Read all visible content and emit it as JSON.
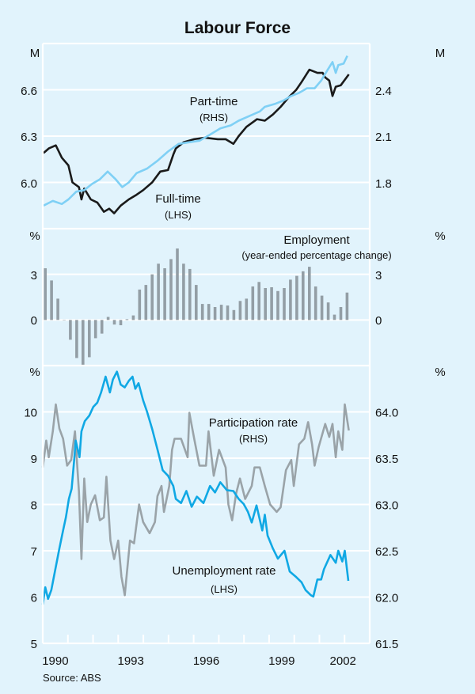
{
  "chart_data": [
    {
      "type": "line",
      "panel": "top",
      "ylabel_left": "M",
      "ylabel_right": "M",
      "ylim_left": [
        5.7,
        6.9
      ],
      "ylim_right": [
        1.5,
        2.7
      ],
      "yticks_left": [
        "6.0",
        "6.3",
        "6.6"
      ],
      "yticks_right": [
        "1.8",
        "2.1",
        "2.4"
      ],
      "grid": true,
      "series": [
        {
          "name": "Full-time",
          "axis": "left",
          "axis_label": "(LHS)",
          "color": "#1a1a1a",
          "points": [
            [
              1990.03,
              6.19
            ],
            [
              1990.24,
              6.22
            ],
            [
              1990.52,
              6.24
            ],
            [
              1990.76,
              6.16
            ],
            [
              1991.02,
              6.11
            ],
            [
              1991.18,
              6.0
            ],
            [
              1991.44,
              5.97
            ],
            [
              1991.54,
              5.89
            ],
            [
              1991.65,
              5.96
            ],
            [
              1991.91,
              5.89
            ],
            [
              1992.17,
              5.87
            ],
            [
              1992.43,
              5.81
            ],
            [
              1992.64,
              5.83
            ],
            [
              1992.84,
              5.8
            ],
            [
              1993.1,
              5.85
            ],
            [
              1993.42,
              5.89
            ],
            [
              1993.73,
              5.92
            ],
            [
              1993.99,
              5.95
            ],
            [
              1994.35,
              6.0
            ],
            [
              1994.67,
              6.07
            ],
            [
              1994.98,
              6.08
            ],
            [
              1995.19,
              6.18
            ],
            [
              1995.29,
              6.22
            ],
            [
              1995.6,
              6.26
            ],
            [
              1996.02,
              6.28
            ],
            [
              1996.44,
              6.29
            ],
            [
              1996.96,
              6.28
            ],
            [
              1997.27,
              6.28
            ],
            [
              1997.58,
              6.25
            ],
            [
              1997.79,
              6.3
            ],
            [
              1998.1,
              6.36
            ],
            [
              1998.52,
              6.41
            ],
            [
              1998.83,
              6.4
            ],
            [
              1999.15,
              6.44
            ],
            [
              1999.46,
              6.49
            ],
            [
              1999.77,
              6.55
            ],
            [
              2000.08,
              6.6
            ],
            [
              2000.29,
              6.65
            ],
            [
              2000.6,
              6.73
            ],
            [
              2000.92,
              6.71
            ],
            [
              2001.13,
              6.71
            ],
            [
              2001.23,
              6.68
            ],
            [
              2001.39,
              6.66
            ],
            [
              2001.52,
              6.56
            ],
            [
              2001.65,
              6.62
            ],
            [
              2001.85,
              6.63
            ],
            [
              2002.17,
              6.7
            ]
          ]
        },
        {
          "name": "Part-time",
          "axis": "right",
          "axis_label": "(RHS)",
          "color": "#7fd0f5",
          "points": [
            [
              1990.03,
              1.65
            ],
            [
              1990.4,
              1.68
            ],
            [
              1990.76,
              1.66
            ],
            [
              1991.02,
              1.69
            ],
            [
              1991.33,
              1.74
            ],
            [
              1991.65,
              1.75
            ],
            [
              1991.96,
              1.79
            ],
            [
              1992.27,
              1.82
            ],
            [
              1992.58,
              1.87
            ],
            [
              1992.9,
              1.82
            ],
            [
              1993.16,
              1.77
            ],
            [
              1993.42,
              1.8
            ],
            [
              1993.73,
              1.86
            ],
            [
              1994.15,
              1.89
            ],
            [
              1994.56,
              1.94
            ],
            [
              1994.98,
              2.0
            ],
            [
              1995.4,
              2.05
            ],
            [
              1995.81,
              2.06
            ],
            [
              1996.23,
              2.07
            ],
            [
              1996.65,
              2.11
            ],
            [
              1997.06,
              2.15
            ],
            [
              1997.48,
              2.17
            ],
            [
              1997.79,
              2.2
            ],
            [
              1998.21,
              2.23
            ],
            [
              1998.63,
              2.26
            ],
            [
              1998.83,
              2.29
            ],
            [
              1999.25,
              2.31
            ],
            [
              1999.56,
              2.33
            ],
            [
              1999.88,
              2.36
            ],
            [
              2000.19,
              2.38
            ],
            [
              2000.5,
              2.41
            ],
            [
              2000.81,
              2.41
            ],
            [
              2001.07,
              2.46
            ],
            [
              2001.33,
              2.53
            ],
            [
              2001.52,
              2.58
            ],
            [
              2001.65,
              2.51
            ],
            [
              2001.75,
              2.56
            ],
            [
              2001.96,
              2.57
            ],
            [
              2002.11,
              2.62
            ]
          ]
        }
      ],
      "title": "Labour Force"
    },
    {
      "type": "bar",
      "panel": "middle",
      "title": "Employment",
      "subtitle": "(year-ended percentage change)",
      "ylabel_left": "%",
      "ylabel_right": "%",
      "ylim": [
        -3,
        6
      ],
      "yticks_left": [
        "0",
        "3"
      ],
      "yticks_right": [
        "0",
        "3"
      ],
      "color": "#939ea5",
      "start": "1990 Q1",
      "frequency": "quarterly",
      "values": [
        3.4,
        2.6,
        1.4,
        0,
        -1.3,
        -2.5,
        -2.95,
        -2.45,
        -1.2,
        -0.9,
        0.2,
        -0.3,
        -0.35,
        0.05,
        0.3,
        2.0,
        2.3,
        3.0,
        3.7,
        3.4,
        4.0,
        4.7,
        3.7,
        3.35,
        2.3,
        1.05,
        1.05,
        0.85,
        1.0,
        0.95,
        0.65,
        1.25,
        1.4,
        2.2,
        2.5,
        2.1,
        2.15,
        1.9,
        2.1,
        2.65,
        2.9,
        3.2,
        3.5,
        2.2,
        1.6,
        1.15,
        0.35,
        0.85,
        1.8
      ]
    },
    {
      "type": "line",
      "panel": "bottom",
      "ylabel_left": "%",
      "ylabel_right": "%",
      "ylim_left": [
        5,
        11
      ],
      "ylim_right": [
        61.5,
        64.5
      ],
      "yticks_left": [
        "5",
        "6",
        "7",
        "8",
        "9",
        "10"
      ],
      "yticks_right": [
        "61.5",
        "62.0",
        "62.5",
        "63.0",
        "63.5",
        "64.0"
      ],
      "xticks": [
        "1990",
        "1993",
        "1996",
        "1999",
        "2002"
      ],
      "xlim": [
        1990,
        2003
      ],
      "source": "Source: ABS",
      "series": [
        {
          "name": "Unemployment rate",
          "axis": "left",
          "axis_label": "(LHS)",
          "color": "#10a8e4",
          "points": [
            [
              1990.0,
              5.84
            ],
            [
              1990.1,
              6.21
            ],
            [
              1990.21,
              5.96
            ],
            [
              1990.34,
              6.15
            ],
            [
              1990.5,
              6.6
            ],
            [
              1990.66,
              7.05
            ],
            [
              1990.81,
              7.44
            ],
            [
              1990.92,
              7.72
            ],
            [
              1991.04,
              8.12
            ],
            [
              1991.15,
              8.34
            ],
            [
              1991.25,
              8.96
            ],
            [
              1991.31,
              9.38
            ],
            [
              1991.46,
              9.02
            ],
            [
              1991.54,
              9.58
            ],
            [
              1991.67,
              9.8
            ],
            [
              1991.85,
              9.92
            ],
            [
              1992.01,
              10.11
            ],
            [
              1992.17,
              10.2
            ],
            [
              1992.32,
              10.42
            ],
            [
              1992.5,
              10.76
            ],
            [
              1992.67,
              10.42
            ],
            [
              1992.79,
              10.7
            ],
            [
              1992.95,
              10.87
            ],
            [
              1993.1,
              10.59
            ],
            [
              1993.26,
              10.53
            ],
            [
              1993.42,
              10.67
            ],
            [
              1993.57,
              10.76
            ],
            [
              1993.68,
              10.5
            ],
            [
              1993.81,
              10.62
            ],
            [
              1993.99,
              10.25
            ],
            [
              1994.15,
              10.0
            ],
            [
              1994.35,
              9.63
            ],
            [
              1994.56,
              9.19
            ],
            [
              1994.77,
              8.74
            ],
            [
              1994.98,
              8.62
            ],
            [
              1995.19,
              8.4
            ],
            [
              1995.29,
              8.12
            ],
            [
              1995.5,
              8.03
            ],
            [
              1995.71,
              8.29
            ],
            [
              1995.92,
              7.95
            ],
            [
              1996.13,
              8.17
            ],
            [
              1996.39,
              8.03
            ],
            [
              1996.65,
              8.4
            ],
            [
              1996.85,
              8.26
            ],
            [
              1997.06,
              8.48
            ],
            [
              1997.32,
              8.31
            ],
            [
              1997.58,
              8.29
            ],
            [
              1997.79,
              8.12
            ],
            [
              1997.99,
              8.01
            ],
            [
              1998.16,
              7.84
            ],
            [
              1998.31,
              7.61
            ],
            [
              1998.5,
              7.98
            ],
            [
              1998.73,
              7.44
            ],
            [
              1998.83,
              7.78
            ],
            [
              1998.94,
              7.33
            ],
            [
              1999.15,
              7.05
            ],
            [
              1999.35,
              6.83
            ],
            [
              1999.61,
              7.0
            ],
            [
              1999.82,
              6.55
            ],
            [
              2000.08,
              6.43
            ],
            [
              2000.29,
              6.32
            ],
            [
              2000.45,
              6.15
            ],
            [
              2000.66,
              6.04
            ],
            [
              2000.76,
              6.01
            ],
            [
              2000.92,
              6.38
            ],
            [
              2001.07,
              6.38
            ],
            [
              2001.18,
              6.6
            ],
            [
              2001.44,
              6.91
            ],
            [
              2001.65,
              6.74
            ],
            [
              2001.75,
              7.0
            ],
            [
              2001.91,
              6.77
            ],
            [
              2002.01,
              7.0
            ],
            [
              2002.15,
              6.35
            ]
          ]
        },
        {
          "name": "Participation rate",
          "axis": "right",
          "axis_label": "(RHS)",
          "color": "#9aa3a8",
          "points": [
            [
              1990.0,
              63.4
            ],
            [
              1990.14,
              63.69
            ],
            [
              1990.24,
              63.51
            ],
            [
              1990.4,
              63.79
            ],
            [
              1990.52,
              64.08
            ],
            [
              1990.66,
              63.82
            ],
            [
              1990.81,
              63.71
            ],
            [
              1990.97,
              63.42
            ],
            [
              1991.13,
              63.48
            ],
            [
              1991.28,
              63.79
            ],
            [
              1991.44,
              63.14
            ],
            [
              1991.54,
              62.41
            ],
            [
              1991.65,
              63.28
            ],
            [
              1991.77,
              62.81
            ],
            [
              1991.91,
              63.0
            ],
            [
              1992.08,
              63.1
            ],
            [
              1992.27,
              62.83
            ],
            [
              1992.43,
              62.86
            ],
            [
              1992.53,
              63.3
            ],
            [
              1992.69,
              62.61
            ],
            [
              1992.84,
              62.41
            ],
            [
              1993.0,
              62.61
            ],
            [
              1993.13,
              62.22
            ],
            [
              1993.26,
              62.02
            ],
            [
              1993.47,
              62.61
            ],
            [
              1993.63,
              62.58
            ],
            [
              1993.83,
              63.0
            ],
            [
              1993.99,
              62.81
            ],
            [
              1994.25,
              62.69
            ],
            [
              1994.46,
              62.81
            ],
            [
              1994.56,
              63.09
            ],
            [
              1994.72,
              63.2
            ],
            [
              1994.82,
              62.92
            ],
            [
              1995.03,
              63.2
            ],
            [
              1995.14,
              63.59
            ],
            [
              1995.24,
              63.71
            ],
            [
              1995.5,
              63.71
            ],
            [
              1995.76,
              63.51
            ],
            [
              1995.83,
              63.99
            ],
            [
              1996.02,
              63.71
            ],
            [
              1996.23,
              63.42
            ],
            [
              1996.49,
              63.42
            ],
            [
              1996.59,
              63.79
            ],
            [
              1996.8,
              63.31
            ],
            [
              1997.01,
              63.59
            ],
            [
              1997.27,
              63.4
            ],
            [
              1997.38,
              63.0
            ],
            [
              1997.53,
              62.83
            ],
            [
              1997.69,
              63.12
            ],
            [
              1997.84,
              63.28
            ],
            [
              1998.05,
              63.06
            ],
            [
              1998.31,
              63.2
            ],
            [
              1998.42,
              63.4
            ],
            [
              1998.63,
              63.4
            ],
            [
              1998.83,
              63.2
            ],
            [
              1999.04,
              63.0
            ],
            [
              1999.3,
              62.92
            ],
            [
              1999.46,
              62.97
            ],
            [
              1999.67,
              63.37
            ],
            [
              1999.88,
              63.48
            ],
            [
              1999.98,
              63.2
            ],
            [
              2000.19,
              63.65
            ],
            [
              2000.4,
              63.71
            ],
            [
              2000.55,
              63.89
            ],
            [
              2000.71,
              63.65
            ],
            [
              2000.81,
              63.42
            ],
            [
              2000.97,
              63.62
            ],
            [
              2001.23,
              63.87
            ],
            [
              2001.39,
              63.73
            ],
            [
              2001.52,
              63.87
            ],
            [
              2001.65,
              63.51
            ],
            [
              2001.75,
              63.79
            ],
            [
              2001.91,
              63.59
            ],
            [
              2002.01,
              64.08
            ],
            [
              2002.17,
              63.8
            ]
          ]
        }
      ]
    }
  ]
}
